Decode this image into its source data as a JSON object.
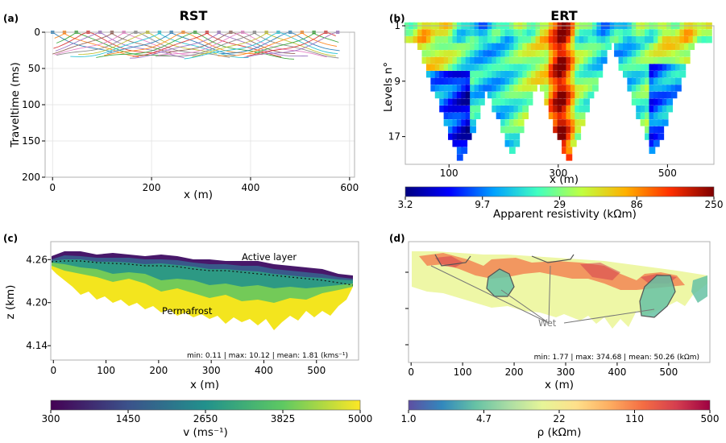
{
  "panels": {
    "a": {
      "label": "(a)",
      "title": "RST",
      "xlabel": "x (m)",
      "ylabel": "Traveltime (ms)"
    },
    "b": {
      "label": "(b)",
      "title": "ERT",
      "xlabel": "x (m)",
      "ylabel": "Levels n°",
      "colorbar_label": "Apparent resistivity (kΩm)"
    },
    "c": {
      "label": "(c)",
      "xlabel": "x (m)",
      "ylabel": "z (km)",
      "colorbar_label": "v (ms⁻¹)",
      "stats": "min: 0.11 | max: 10.12 | mean: 1.81 (kms⁻¹)",
      "annotations": [
        "Active layer",
        "Permafrost"
      ]
    },
    "d": {
      "label": "(d)",
      "xlabel": "x (m)",
      "colorbar_label": "ρ (kΩm)",
      "stats": "min: 1.77 | max: 374.68 | mean: 50.26 (kΩm)",
      "annotations": [
        "Wet"
      ]
    }
  },
  "colors": {
    "viridis": [
      "#440154",
      "#3b528b",
      "#21918c",
      "#5ec962",
      "#fde725"
    ],
    "jet": [
      "#00007f",
      "#0000ff",
      "#00a0ff",
      "#40ffc0",
      "#c0ff40",
      "#ffb000",
      "#ff3000",
      "#7f0000"
    ],
    "spectral_r": [
      "#5e4fa2",
      "#3288bd",
      "#66c2a5",
      "#abdda4",
      "#e6f598",
      "#fee08b",
      "#fdae61",
      "#f46d43",
      "#d53e4f",
      "#9e0142"
    ]
  },
  "chart_data": [
    {
      "id": "a",
      "type": "line",
      "xlim": [
        -15,
        610
      ],
      "ylim": [
        200,
        0
      ],
      "xticks": [
        0,
        200,
        400,
        600
      ],
      "yticks": [
        0,
        50,
        100,
        150,
        200
      ],
      "grid": true,
      "series_description": "many shot-gather traveltime picks, 0–55 ms, x 0–580 m",
      "shots": [
        0,
        24,
        48,
        72,
        96,
        120,
        144,
        168,
        192,
        216,
        240,
        264,
        288,
        312,
        336,
        360,
        384,
        408,
        432,
        456,
        480,
        504,
        528,
        552,
        576
      ]
    },
    {
      "id": "b",
      "type": "heatmap",
      "xlim": [
        20,
        585
      ],
      "ylim": [
        21,
        1
      ],
      "xticks": [
        100,
        300,
        500
      ],
      "yticks": [
        1,
        9,
        17
      ],
      "colorbar": {
        "scale": "log",
        "range": [
          3.2,
          250
        ],
        "ticks": [
          "3.2",
          "9.7",
          "29",
          "86",
          "250"
        ]
      }
    },
    {
      "id": "c",
      "type": "heatmap",
      "xlim": [
        -5,
        580
      ],
      "ylim": [
        4.12,
        4.285
      ],
      "xticks": [
        0,
        100,
        200,
        300,
        400,
        500
      ],
      "yticks": [
        "4.14",
        "4.20",
        "4.26"
      ],
      "colorbar": {
        "scale": "linear",
        "range": [
          300,
          5000
        ],
        "ticks": [
          "300",
          "1450",
          "2650",
          "3825",
          "5000"
        ]
      }
    },
    {
      "id": "d",
      "type": "heatmap",
      "xlim": [
        -5,
        580
      ],
      "xticks": [
        0,
        100,
        200,
        300,
        400,
        500
      ],
      "colorbar": {
        "scale": "log",
        "range": [
          1.0,
          500
        ],
        "ticks": [
          "1.0",
          "4.7",
          "22",
          "110",
          "500"
        ]
      }
    }
  ]
}
